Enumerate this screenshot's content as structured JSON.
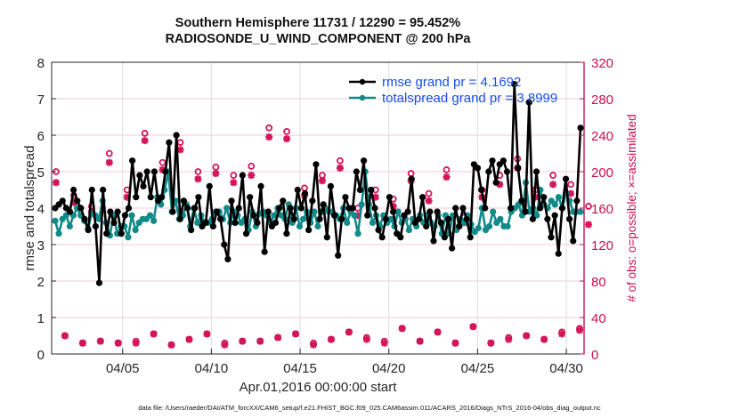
{
  "chart_data": {
    "type": "line",
    "title": "Southern Hemisphere 11731 / 12290 = 95.452%",
    "subtitle": "RADIOSONDE_U_WIND_COMPONENT @ 200 hPa",
    "xlabel": "Apr.01,2016 00:00:00 start",
    "ylabel": "rmse and totalspread",
    "y2label": "# of obs: o=possible; ×=assimilated",
    "footnote": "data file: /Users/raeder/DAI/ATM_forcXX/CAM6_setup/f.e21.FHIST_BGC.f09_025.CAM6assim.011/ACARS_2016/Diags_NTrS_2016-04/obs_diag_output.nc",
    "xlim_days": [
      0,
      30
    ],
    "ylim": [
      0,
      8
    ],
    "y2lim": [
      0,
      320
    ],
    "yticks": [
      "0",
      "1",
      "2",
      "3",
      "4",
      "5",
      "6",
      "7",
      "8"
    ],
    "y2ticks": [
      "0",
      "40",
      "80",
      "120",
      "160",
      "200",
      "240",
      "280",
      "320"
    ],
    "xticks": [
      {
        "day": 4,
        "label": "04/05"
      },
      {
        "day": 9,
        "label": "04/10"
      },
      {
        "day": 14,
        "label": "04/15"
      },
      {
        "day": 19,
        "label": "04/20"
      },
      {
        "day": 24,
        "label": "04/25"
      },
      {
        "day": 29,
        "label": "04/30"
      }
    ],
    "grid": true,
    "legend_position": "top-right",
    "colors": {
      "rmse": "#000000",
      "spread": "#138a8a",
      "obs": "#d4155a",
      "legend_text": "#1a4fe8",
      "right_axis": "#c8104e"
    },
    "series": [
      {
        "name": "rmse grand pr = 4.1692",
        "key": "rmse",
        "step_hours": 6,
        "values": [
          4.0,
          4.1,
          4.2,
          4.0,
          3.9,
          4.5,
          4.2,
          4.0,
          3.7,
          3.4,
          4.5,
          3.5,
          1.95,
          4.5,
          3.3,
          3.9,
          3.6,
          3.9,
          3.3,
          3.8,
          4.0,
          5.3,
          4.3,
          4.9,
          4.6,
          5.0,
          4.3,
          5.0,
          4.2,
          4.3,
          5.0,
          5.8,
          3.9,
          6.0,
          3.7,
          4.2,
          4.0,
          3.4,
          4.0,
          4.3,
          3.5,
          3.6,
          4.6,
          3.5,
          3.9,
          3.7,
          3.0,
          2.6,
          4.2,
          3.6,
          4.0,
          4.9,
          3.3,
          4.3,
          3.8,
          3.6,
          4.6,
          2.8,
          3.9,
          3.5,
          3.6,
          4.0,
          4.2,
          3.3,
          4.0,
          3.7,
          4.5,
          4.0,
          4.4,
          3.4,
          4.2,
          5.2,
          3.7,
          4.1,
          3.2,
          4.6,
          3.8,
          2.7,
          3.7,
          4.3,
          4.0,
          4.0,
          5.0,
          4.5,
          5.3,
          3.8,
          4.5,
          4.0,
          3.4,
          3.2,
          3.7,
          4.3,
          3.9,
          3.3,
          3.2,
          3.8,
          3.9,
          4.8,
          3.6,
          3.7,
          4.3,
          3.5,
          3.9,
          3.1,
          3.9,
          3.6,
          3.2,
          3.7,
          2.9,
          4.0,
          3.5,
          4.0,
          3.7,
          3.2,
          5.2,
          5.1,
          4.5,
          4.0,
          5.0,
          5.3,
          4.7,
          5.2,
          5.3,
          5.0,
          4.0,
          7.4,
          5.1,
          4.2,
          3.9,
          6.9,
          3.7,
          5.0,
          4.0,
          4.3,
          3.7,
          3.2,
          3.8,
          2.75,
          4.0,
          4.8,
          3.7,
          3.1,
          4.2,
          6.2
        ]
      },
      {
        "name": "totalspread grand pr = 3.8999",
        "key": "spread",
        "step_hours": 6,
        "values": [
          3.65,
          3.3,
          3.7,
          3.8,
          3.5,
          3.8,
          4.0,
          3.8,
          3.65,
          3.45,
          3.85,
          3.8,
          3.7,
          4.2,
          3.6,
          3.25,
          3.8,
          3.3,
          3.5,
          3.5,
          3.2,
          3.8,
          3.4,
          3.6,
          3.7,
          3.7,
          3.8,
          3.65,
          4.3,
          4.1,
          4.5,
          5.0,
          3.9,
          4.2,
          3.7,
          3.8,
          4.1,
          3.5,
          4.0,
          3.6,
          3.8,
          3.6,
          3.6,
          3.7,
          3.9,
          3.9,
          3.7,
          4.0,
          3.6,
          3.9,
          3.8,
          3.6,
          3.7,
          3.4,
          3.9,
          3.5,
          3.85,
          3.9,
          3.8,
          3.6,
          3.8,
          4.0,
          3.8,
          3.7,
          4.1,
          3.6,
          4.0,
          3.5,
          3.7,
          3.9,
          3.6,
          3.9,
          3.5,
          3.9,
          4.0,
          3.9,
          3.9,
          3.8,
          3.7,
          4.0,
          3.6,
          3.9,
          3.8,
          3.3,
          4.1,
          5.0,
          4.1,
          3.6,
          3.8,
          3.5,
          3.8,
          3.6,
          3.7,
          3.5,
          3.9,
          3.6,
          3.7,
          3.4,
          3.7,
          3.5,
          3.8,
          3.6,
          3.8,
          3.6,
          3.5,
          3.8,
          3.3,
          3.8,
          3.3,
          3.8,
          3.4,
          3.7,
          3.6,
          3.8,
          3.55,
          3.35,
          3.45,
          4.0,
          3.4,
          3.5,
          3.9,
          3.6,
          3.7,
          3.5,
          3.5,
          3.9,
          4.0,
          4.1,
          3.8,
          4.7,
          3.9,
          4.0,
          3.8,
          4.5,
          4.1,
          4.0,
          4.2,
          4.1,
          4.3,
          4.0,
          4.4,
          4.2,
          3.9,
          3.9,
          3.9
        ]
      },
      {
        "name": "obs possible (o)",
        "key": "possible",
        "step_hours": 12,
        "values": [
          200,
          20,
          174,
          12,
          162,
          14,
          220,
          12,
          180,
          14,
          242,
          22,
          210,
          10,
          232,
          16,
          200,
          22,
          205,
          12,
          196,
          14,
          206,
          14,
          248,
          18,
          244,
          22,
          182,
          12,
          196,
          16,
          212,
          24,
          160,
          18,
          180,
          14,
          170,
          28,
          198,
          14,
          176,
          24,
          202,
          12,
          150,
          30,
          180,
          12,
          196,
          18,
          214,
          20,
          180,
          16,
          196,
          24,
          186,
          28,
          162
        ]
      },
      {
        "name": "obs assimilated (×)",
        "key": "assimilated",
        "step_hours": 12,
        "values": [
          188,
          20,
          166,
          12,
          156,
          14,
          210,
          12,
          172,
          12,
          234,
          22,
          202,
          10,
          224,
          16,
          192,
          22,
          198,
          10,
          188,
          14,
          196,
          14,
          238,
          18,
          236,
          22,
          174,
          10,
          190,
          16,
          204,
          24,
          152,
          16,
          172,
          12,
          162,
          28,
          190,
          14,
          168,
          24,
          194,
          12,
          144,
          30,
          172,
          12,
          186,
          16,
          204,
          20,
          172,
          16,
          186,
          22,
          176,
          26,
          142
        ]
      }
    ]
  }
}
